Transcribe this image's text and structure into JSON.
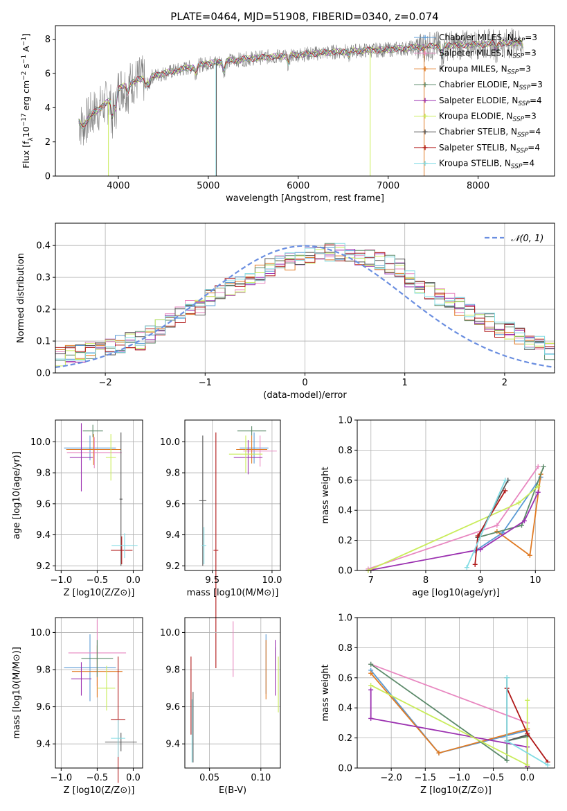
{
  "title": "PLATE=0464, MJD=51908, FIBERID=0340, z=0.074",
  "colors": {
    "Chabrier MILES": "#5b9bd5",
    "Salpeter MILES": "#e887c0",
    "Kroupa MILES": "#e07b24",
    "Chabrier ELODIE": "#5c8a6a",
    "Salpeter ELODIE": "#9b30b0",
    "Kroupa ELODIE": "#c9ec5a",
    "Chabrier STELIB": "#555555",
    "Salpeter STELIB": "#b01818",
    "Kroupa STELIB": "#82dce4",
    "data": "#808080",
    "normal": "#6a8ee0"
  },
  "chart_data": [
    {
      "id": "spectrum",
      "type": "line",
      "xlabel": "wavelength [Angstrom, rest frame]",
      "ylabel": "Flux [f_λ 10^-17 erg cm^-2 s^-1 A^-1]",
      "xlim": [
        3300,
        8850
      ],
      "ylim": [
        0,
        8.8
      ],
      "xticks": [
        4000,
        5000,
        6000,
        7000,
        8000
      ],
      "yticks": [
        0,
        2,
        4,
        6,
        8
      ],
      "grid": false,
      "legend_position": "right",
      "data_continuum": {
        "x": [
          3560,
          3600,
          3700,
          3800,
          3900,
          4000,
          4200,
          4500,
          5000,
          5500,
          6000,
          6500,
          7000,
          7500,
          8000,
          8400
        ],
        "y": [
          3.2,
          2.9,
          3.6,
          4.0,
          4.4,
          5.1,
          5.6,
          6.0,
          6.6,
          6.9,
          7.1,
          7.3,
          7.4,
          7.6,
          7.7,
          7.8
        ]
      },
      "legend": [
        {
          "main": "Chabrier MILES",
          "n": "3"
        },
        {
          "main": "Salpeter MILES",
          "n": "3"
        },
        {
          "main": "Kroupa MILES",
          "n": "3"
        },
        {
          "main": "Chabrier ELODIE",
          "n": "3"
        },
        {
          "main": "Salpeter ELODIE",
          "n": "4"
        },
        {
          "main": "Kroupa ELODIE",
          "n": "3"
        },
        {
          "main": "Chabrier STELIB",
          "n": "4"
        },
        {
          "main": "Salpeter STELIB",
          "n": "4"
        },
        {
          "main": "Kroupa STELIB",
          "n": "4"
        }
      ],
      "legend_n_prefix": "N",
      "legend_n_sub": "SSP"
    },
    {
      "id": "residuals",
      "type": "histogram",
      "xlabel": "(data-model)/error",
      "ylabel": "Normed distribution",
      "xlim": [
        -2.5,
        2.5
      ],
      "ylim": [
        0,
        0.47
      ],
      "xticks": [
        -2,
        -1,
        0,
        1,
        2
      ],
      "xtick_labels": [
        "−2",
        "−1",
        "0",
        "1",
        "2"
      ],
      "yticks": [
        0.0,
        0.1,
        0.2,
        0.3,
        0.4
      ],
      "grid": true,
      "bin_edges_start": -2.5,
      "bin_width": 0.1,
      "base_values": [
        0.05,
        0.06,
        0.06,
        0.07,
        0.07,
        0.08,
        0.09,
        0.1,
        0.1,
        0.12,
        0.14,
        0.16,
        0.18,
        0.2,
        0.21,
        0.24,
        0.25,
        0.27,
        0.28,
        0.3,
        0.31,
        0.33,
        0.34,
        0.35,
        0.36,
        0.37,
        0.37,
        0.38,
        0.38,
        0.37,
        0.36,
        0.36,
        0.35,
        0.34,
        0.33,
        0.3,
        0.28,
        0.26,
        0.24,
        0.23,
        0.21,
        0.19,
        0.18,
        0.16,
        0.14,
        0.13,
        0.12,
        0.1,
        0.09,
        0.07
      ],
      "normal_curve": {
        "label": "N(0,1)",
        "mu": 0,
        "sigma": 1
      }
    },
    {
      "id": "age-vs-Z",
      "type": "errorbar",
      "xlabel": "Z [log10(Z/Z⊙)]",
      "ylabel": "age [log10(age/yr)]",
      "xlim": [
        -1.08,
        0.13
      ],
      "ylim": [
        9.17,
        10.14
      ],
      "xticks": [
        -1.0,
        -0.5,
        0.0
      ],
      "xtick_labels": [
        "−1.0",
        "−0.5",
        "0.0"
      ],
      "yticks": [
        9.2,
        9.4,
        9.6,
        9.8,
        10.0
      ],
      "yticks_labels": [
        "9.2",
        "9.4",
        "9.6",
        "9.8",
        "10.0"
      ],
      "grid": true,
      "points": [
        {
          "model": "Chabrier MILES",
          "x": -0.6,
          "xerr": 0.36,
          "y": 9.96,
          "yerr": 0.08
        },
        {
          "model": "Salpeter MILES",
          "x": -0.54,
          "xerr": 0.38,
          "y": 9.93,
          "yerr": 0.1
        },
        {
          "model": "Kroupa MILES",
          "x": -0.55,
          "xerr": 0.38,
          "y": 9.95,
          "yerr": 0.1
        },
        {
          "model": "Chabrier ELODIE",
          "x": -0.56,
          "xerr": 0.14,
          "y": 10.07,
          "yerr": 0.04
        },
        {
          "model": "Salpeter ELODIE",
          "x": -0.72,
          "xerr": 0.16,
          "y": 9.9,
          "yerr": 0.22
        },
        {
          "model": "Kroupa ELODIE",
          "x": -0.31,
          "xerr": 0.07,
          "y": 9.9,
          "yerr": 0.15
        },
        {
          "model": "Chabrier STELIB",
          "x": -0.17,
          "xerr": 0.02,
          "y": 9.63,
          "yerr": 0.43
        },
        {
          "model": "Salpeter STELIB",
          "x": -0.16,
          "xerr": 0.15,
          "y": 9.3,
          "yerr": 0.09
        },
        {
          "model": "Kroupa STELIB",
          "x": -0.12,
          "xerr": 0.18,
          "y": 9.33,
          "yerr": 0.08
        }
      ]
    },
    {
      "id": "age-vs-mass",
      "type": "errorbar",
      "xlabel": "mass [log10(M/M⊙)]",
      "ylabel": "",
      "xlim": [
        9.27,
        10.07
      ],
      "ylim": [
        9.17,
        10.14
      ],
      "xticks": [
        9.5,
        10.0
      ],
      "xtick_labels": [
        "9.5",
        "10.0"
      ],
      "yticks": [
        9.2,
        9.4,
        9.6,
        9.8,
        10.0
      ],
      "yticks_labels": [
        "9.2",
        "9.4",
        "9.6",
        "9.8",
        "10.0"
      ],
      "grid": true,
      "points": [
        {
          "model": "Chabrier MILES",
          "x": 9.85,
          "xerr": 0.12,
          "y": 9.96,
          "yerr": 0.1
        },
        {
          "model": "Salpeter MILES",
          "x": 9.9,
          "xerr": 0.14,
          "y": 9.94,
          "yerr": 0.1
        },
        {
          "model": "Kroupa MILES",
          "x": 9.83,
          "xerr": 0.13,
          "y": 9.95,
          "yerr": 0.09
        },
        {
          "model": "Chabrier ELODIE",
          "x": 9.83,
          "xerr": 0.12,
          "y": 10.07,
          "yerr": 0.03
        },
        {
          "model": "Salpeter ELODIE",
          "x": 9.8,
          "xerr": 0.12,
          "y": 9.9,
          "yerr": 0.11
        },
        {
          "model": "Kroupa ELODIE",
          "x": 9.78,
          "xerr": 0.14,
          "y": 9.92,
          "yerr": 0.12
        },
        {
          "model": "Chabrier STELIB",
          "x": 9.42,
          "xerr": 0.03,
          "y": 9.62,
          "yerr": 0.42
        },
        {
          "model": "Salpeter STELIB",
          "x": 9.53,
          "xerr": 0.02,
          "y": 9.3,
          "yerr": 0.76
        },
        {
          "model": "Kroupa STELIB",
          "x": 9.43,
          "xerr": 0.02,
          "y": 9.33,
          "yerr": 0.12
        }
      ]
    },
    {
      "id": "weight-vs-age",
      "type": "line",
      "xlabel": "age [log10(age/yr)]",
      "ylabel": "mass weight",
      "xlim": [
        6.75,
        10.35
      ],
      "ylim": [
        0,
        1.0
      ],
      "xticks": [
        7,
        8,
        9,
        10
      ],
      "yticks": [
        0.0,
        0.2,
        0.4,
        0.6,
        0.8,
        1.0
      ],
      "grid": true,
      "series": [
        {
          "model": "Chabrier MILES",
          "x": [
            8.9,
            9.4,
            10.1
          ],
          "y": [
            0.13,
            0.25,
            0.62
          ]
        },
        {
          "model": "Salpeter MILES",
          "x": [
            6.95,
            9.3,
            10.05
          ],
          "y": [
            0.01,
            0.3,
            0.69
          ]
        },
        {
          "model": "Kroupa MILES",
          "x": [
            9.3,
            9.9,
            10.1
          ],
          "y": [
            0.26,
            0.1,
            0.64
          ]
        },
        {
          "model": "Chabrier ELODIE",
          "x": [
            8.95,
            9.75,
            10.15
          ],
          "y": [
            0.22,
            0.3,
            0.69
          ]
        },
        {
          "model": "Salpeter ELODIE",
          "x": [
            6.95,
            9.0,
            9.8,
            10.05
          ],
          "y": [
            0.0,
            0.14,
            0.33,
            0.52
          ]
        },
        {
          "model": "Kroupa ELODIE",
          "x": [
            6.95,
            9.7,
            10.05
          ],
          "y": [
            0.0,
            0.45,
            0.56
          ]
        },
        {
          "model": "Chabrier STELIB",
          "x": [
            8.95,
            9.5
          ],
          "y": [
            0.22,
            0.6
          ]
        },
        {
          "model": "Salpeter STELIB",
          "x": [
            8.9,
            8.95,
            9.45
          ],
          "y": [
            0.04,
            0.23,
            0.53
          ]
        },
        {
          "model": "Kroupa STELIB",
          "x": [
            8.75,
            9.45
          ],
          "y": [
            0.02,
            0.6
          ]
        }
      ]
    },
    {
      "id": "mass-vs-Z",
      "type": "errorbar",
      "xlabel": "Z [log10(Z/Z⊙)]",
      "ylabel": "mass [log10(M/M⊙)]",
      "xlim": [
        -1.08,
        0.13
      ],
      "ylim": [
        9.27,
        10.08
      ],
      "xticks": [
        -1.0,
        -0.5,
        0.0
      ],
      "xtick_labels": [
        "−1.0",
        "−0.5",
        "0.0"
      ],
      "yticks": [
        9.4,
        9.6,
        9.8,
        10.0
      ],
      "yticks_labels": [
        "9.4",
        "9.6",
        "9.8",
        "10.0"
      ],
      "grid": true,
      "points": [
        {
          "model": "Chabrier MILES",
          "x": -0.6,
          "xerr": 0.36,
          "y": 9.81,
          "yerr": 0.18
        },
        {
          "model": "Salpeter MILES",
          "x": -0.5,
          "xerr": 0.4,
          "y": 9.89,
          "yerr": 0.18
        },
        {
          "model": "Kroupa MILES",
          "x": -0.5,
          "xerr": 0.35,
          "y": 9.79,
          "yerr": 0.14
        },
        {
          "model": "Chabrier ELODIE",
          "x": -0.5,
          "xerr": 0.22,
          "y": 9.86,
          "yerr": 0.1
        },
        {
          "model": "Salpeter ELODIE",
          "x": -0.72,
          "xerr": 0.14,
          "y": 9.75,
          "yerr": 0.09
        },
        {
          "model": "Kroupa ELODIE",
          "x": -0.37,
          "xerr": 0.12,
          "y": 9.7,
          "yerr": 0.12
        },
        {
          "model": "Chabrier STELIB",
          "x": -0.17,
          "xerr": 0.22,
          "y": 9.41,
          "yerr": 0.05
        },
        {
          "model": "Salpeter STELIB",
          "x": -0.21,
          "xerr": 0.1,
          "y": 9.53,
          "yerr": 0.34
        },
        {
          "model": "Kroupa STELIB",
          "x": -0.21,
          "xerr": 0.1,
          "y": 9.43,
          "yerr": 0.1
        }
      ]
    },
    {
      "id": "mass-vs-EBV",
      "type": "errorbar",
      "xlabel": "E(B-V)",
      "ylabel": "",
      "xlim": [
        0.026,
        0.119
      ],
      "ylim": [
        9.27,
        10.08
      ],
      "xticks": [
        0.05,
        0.1
      ],
      "xtick_labels": [
        "0.05",
        "0.10"
      ],
      "yticks": [
        9.4,
        9.6,
        9.8,
        10.0
      ],
      "yticks_labels": [
        "9.4",
        "9.6",
        "9.8",
        "10.0"
      ],
      "grid": true,
      "points": [
        {
          "model": "Chabrier MILES",
          "x": 0.105,
          "xerr": 0,
          "y": 9.83,
          "yerr": 0.16
        },
        {
          "model": "Salpeter MILES",
          "x": 0.073,
          "xerr": 0,
          "y": 9.91,
          "yerr": 0.15
        },
        {
          "model": "Kroupa MILES",
          "x": 0.105,
          "xerr": 0,
          "y": 9.8,
          "yerr": 0.16
        },
        {
          "model": "Chabrier ELODIE",
          "x": 0.114,
          "xerr": 0,
          "y": 9.86,
          "yerr": 0.06
        },
        {
          "model": "Salpeter ELODIE",
          "x": 0.114,
          "xerr": 0,
          "y": 9.81,
          "yerr": 0.15
        },
        {
          "model": "Kroupa ELODIE",
          "x": 0.117,
          "xerr": 0,
          "y": 9.72,
          "yerr": 0.15
        },
        {
          "model": "Chabrier STELIB",
          "x": 0.034,
          "xerr": 0,
          "y": 9.49,
          "yerr": 0.19
        },
        {
          "model": "Salpeter STELIB",
          "x": 0.032,
          "xerr": 0,
          "y": 9.66,
          "yerr": 0.21
        },
        {
          "model": "Kroupa STELIB",
          "x": 0.033,
          "xerr": 0,
          "y": 9.47,
          "yerr": 0.17
        }
      ]
    },
    {
      "id": "weight-vs-Z",
      "type": "line",
      "xlabel": "Z [log10(Z/Z⊙)]",
      "ylabel": "mass weight",
      "xlim": [
        -2.5,
        0.4
      ],
      "ylim": [
        0,
        1.0
      ],
      "xticks": [
        -2.0,
        -1.5,
        -1.0,
        -0.5,
        0.0
      ],
      "xtick_labels": [
        "−2.0",
        "−1.5",
        "−1.0",
        "−0.5",
        "0.0"
      ],
      "yticks": [
        0.0,
        0.2,
        0.4,
        0.6,
        0.8,
        1.0
      ],
      "grid": true,
      "series": [
        {
          "model": "Chabrier MILES",
          "x": [
            -2.3,
            -1.3,
            0.0
          ],
          "y": [
            0.65,
            0.1,
            0.25
          ]
        },
        {
          "model": "Salpeter MILES",
          "x": [
            -2.3,
            0.0,
            0.0
          ],
          "y": [
            0.69,
            0.3,
            0.01
          ]
        },
        {
          "model": "Kroupa MILES",
          "x": [
            -2.3,
            -1.3,
            0.0
          ],
          "y": [
            0.63,
            0.1,
            0.26
          ]
        },
        {
          "model": "Chabrier ELODIE",
          "x": [
            -2.3,
            -0.3,
            -0.3,
            0.0,
            0.0
          ],
          "y": [
            0.69,
            0.05,
            0.18,
            0.21,
            0.01
          ]
        },
        {
          "model": "Salpeter ELODIE",
          "x": [
            -2.3,
            -2.3,
            0.0,
            0.0
          ],
          "y": [
            0.52,
            0.33,
            0.14,
            0.01
          ]
        },
        {
          "model": "Kroupa ELODIE",
          "x": [
            -2.3,
            0.0,
            0.0
          ],
          "y": [
            0.55,
            0.02,
            0.45
          ]
        },
        {
          "model": "Chabrier STELIB",
          "x": [
            -0.3,
            -0.3,
            0.0
          ],
          "y": [
            0.6,
            0.18,
            0.22
          ]
        },
        {
          "model": "Salpeter STELIB",
          "x": [
            -0.3,
            0.0,
            0.3
          ],
          "y": [
            0.53,
            0.23,
            0.04
          ]
        },
        {
          "model": "Kroupa STELIB",
          "x": [
            -0.3,
            -0.3,
            0.3
          ],
          "y": [
            0.6,
            0.18,
            0.02
          ]
        }
      ]
    }
  ]
}
